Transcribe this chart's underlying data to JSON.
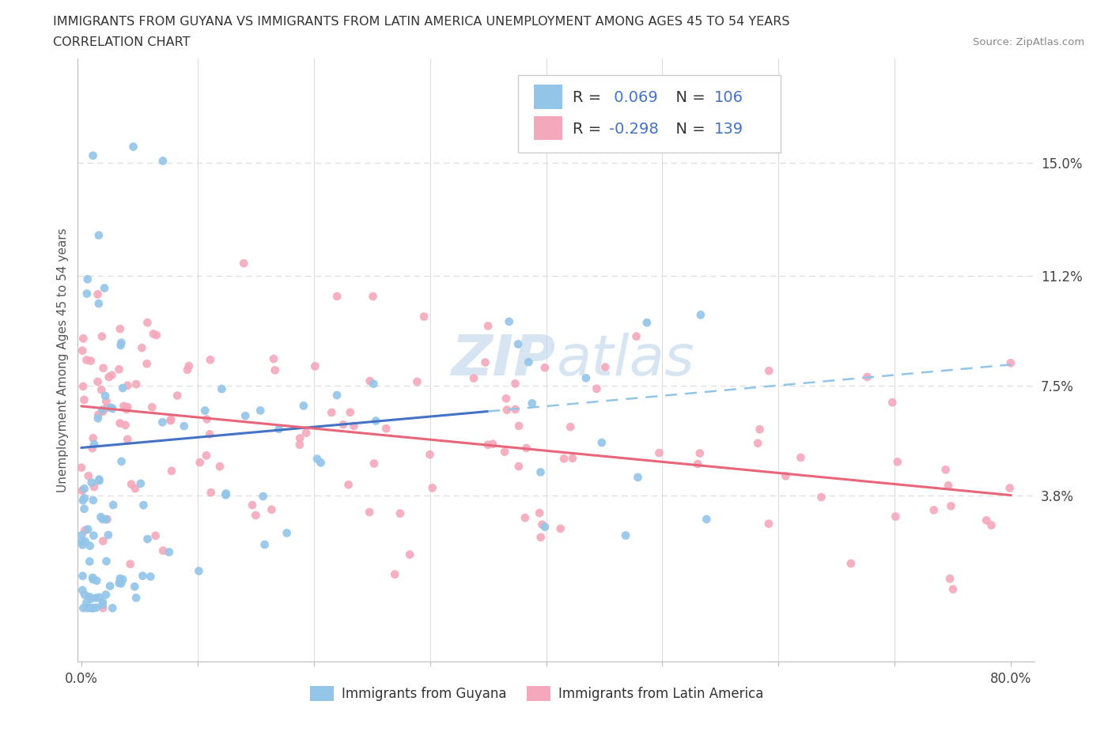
{
  "title_line1": "IMMIGRANTS FROM GUYANA VS IMMIGRANTS FROM LATIN AMERICA UNEMPLOYMENT AMONG AGES 45 TO 54 YEARS",
  "title_line2": "CORRELATION CHART",
  "source": "Source: ZipAtlas.com",
  "ylabel": "Unemployment Among Ages 45 to 54 years",
  "xlim": [
    -0.003,
    0.82
  ],
  "ylim": [
    -0.018,
    0.185
  ],
  "xticks": [
    0.0,
    0.1,
    0.2,
    0.3,
    0.4,
    0.5,
    0.6,
    0.7,
    0.8
  ],
  "xticklabels": [
    "0.0%",
    "",
    "",
    "",
    "",
    "",
    "",
    "",
    "80.0%"
  ],
  "right_yticks": [
    0.038,
    0.075,
    0.112,
    0.15
  ],
  "right_yticklabels": [
    "3.8%",
    "7.5%",
    "11.2%",
    "15.0%"
  ],
  "guyana_color": "#92C5E8",
  "latam_color": "#F4A8BC",
  "trend_guyana_solid": "#4472C4",
  "trend_guyana_dashed": "#92C5E8",
  "trend_latam": "#E8657A",
  "R_guyana": 0.069,
  "N_guyana": 106,
  "R_latam": -0.298,
  "N_latam": 139,
  "legend_R_color": "#333333",
  "legend_N_color": "#4472C4",
  "legend_R_val_guyana_color": "#4472C4",
  "legend_R_val_latam_color": "#4472C4",
  "watermark_color": "#C8D8EC",
  "grid_color": "#DDDDDD",
  "background_color": "#FFFFFF"
}
